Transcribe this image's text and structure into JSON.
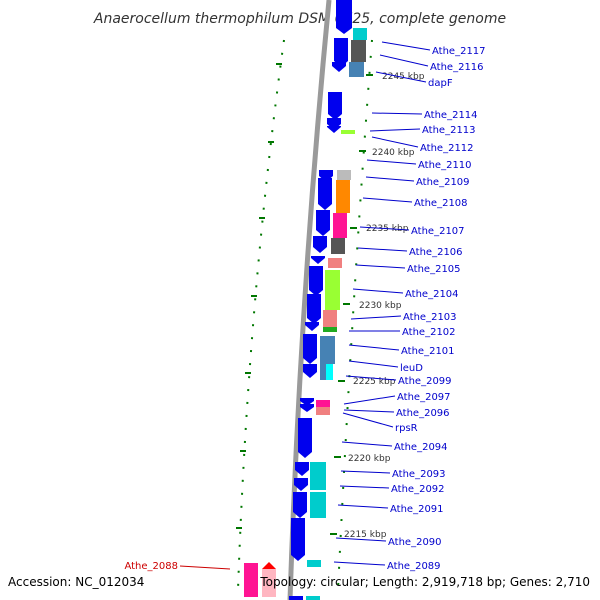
{
  "title": "Anaerocellum thermophilum DSM 6725, complete genome",
  "accession": "Accession: NC_012034",
  "topology": "Topology: circular; Length: 2,919,718 bp; Genes: 2,710",
  "colors": {
    "gene_arrow": "#0000ee",
    "label_blue": "#0000cc",
    "label_red": "#cc0000",
    "backbone": "#9a9a9a",
    "tick_green": "#007700"
  },
  "gene_labels": [
    "Athe_2117",
    "Athe_2116",
    "dapF",
    "Athe_2114",
    "Athe_2113",
    "Athe_2112",
    "Athe_2110",
    "Athe_2109",
    "Athe_2108",
    "Athe_2107",
    "Athe_2106",
    "Athe_2105",
    "Athe_2104",
    "Athe_2103",
    "Athe_2102",
    "Athe_2101",
    "leuD",
    "Athe_2099",
    "Athe_2097",
    "Athe_2096",
    "rpsR",
    "Athe_2094",
    "Athe_2093",
    "Athe_2092",
    "Athe_2091",
    "Athe_2090",
    "Athe_2089"
  ],
  "highlight_label": "Athe_2088",
  "kbp_labels": [
    "2245 kbp",
    "2240 kbp",
    "2235 kbp",
    "2230 kbp",
    "2225 kbp",
    "2220 kbp",
    "2215 kbp"
  ]
}
